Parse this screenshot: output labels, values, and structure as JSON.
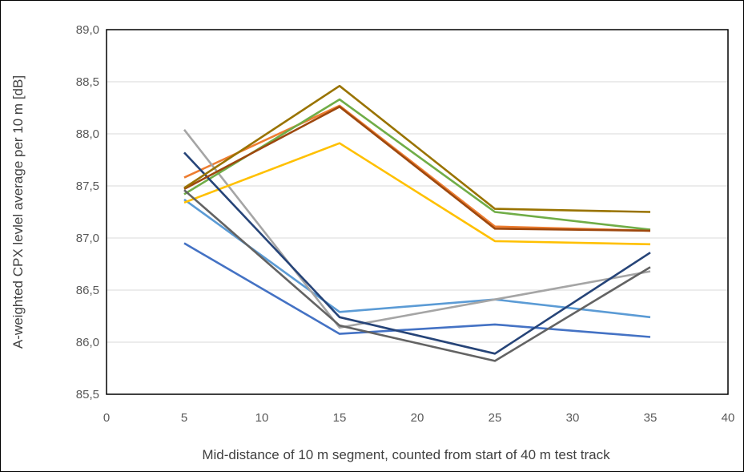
{
  "chart_data": {
    "type": "line",
    "title": "",
    "xlabel": "Mid-distance of 10 m segment, counted from start of 40 m test track",
    "ylabel": "A-weighted CPX levlel average per 10 m [dB]",
    "xlim": [
      0,
      40
    ],
    "ylim": [
      85.5,
      89.0
    ],
    "x_ticks": [
      "0",
      "5",
      "10",
      "15",
      "20",
      "25",
      "30",
      "35",
      "40"
    ],
    "x_tick_values": [
      0,
      5,
      10,
      15,
      20,
      25,
      30,
      35,
      40
    ],
    "y_ticks": [
      "85,5",
      "86,0",
      "86,5",
      "87,0",
      "87,5",
      "88,0",
      "88,5",
      "89,0"
    ],
    "y_tick_values": [
      85.5,
      86.0,
      86.5,
      87.0,
      87.5,
      88.0,
      88.5,
      89.0
    ],
    "grid": "horizontal",
    "legend": "none",
    "x": [
      5,
      15,
      25,
      35
    ],
    "series": [
      {
        "color": "#5B9BD5",
        "values": [
          87.37,
          86.29,
          86.41,
          86.24
        ]
      },
      {
        "color": "#ED7D31",
        "values": [
          87.58,
          88.27,
          87.11,
          87.07
        ]
      },
      {
        "color": "#A5A5A5",
        "values": [
          88.04,
          86.14,
          86.41,
          86.68
        ]
      },
      {
        "color": "#FFC000",
        "values": [
          87.34,
          87.91,
          86.97,
          86.94
        ]
      },
      {
        "color": "#4472C4",
        "values": [
          86.95,
          86.08,
          86.17,
          86.05
        ]
      },
      {
        "color": "#70AD47",
        "values": [
          87.42,
          88.33,
          87.25,
          87.08
        ]
      },
      {
        "color": "#264478",
        "values": [
          87.82,
          86.24,
          85.89,
          86.86
        ]
      },
      {
        "color": "#9E480E",
        "values": [
          87.47,
          88.26,
          87.09,
          87.07
        ]
      },
      {
        "color": "#636363",
        "values": [
          87.46,
          86.16,
          85.82,
          86.72
        ]
      },
      {
        "color": "#997300",
        "values": [
          87.48,
          88.46,
          87.28,
          87.25
        ]
      }
    ]
  }
}
